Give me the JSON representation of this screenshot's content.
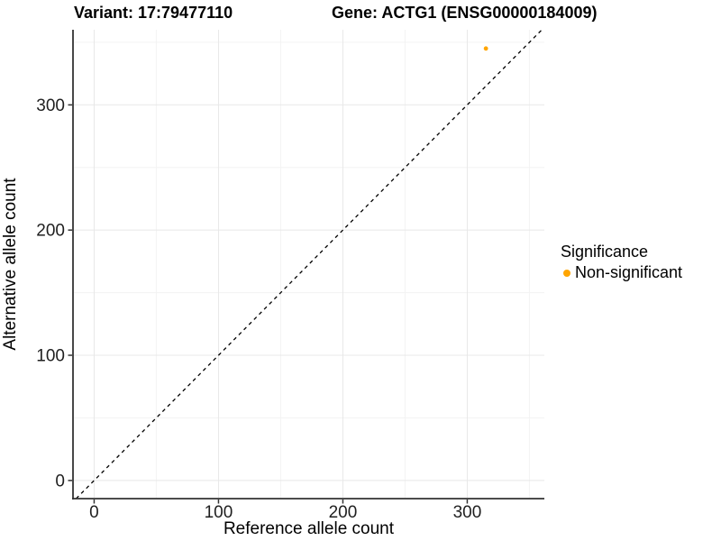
{
  "chart_data": {
    "type": "scatter",
    "title_left": "Variant: 17:79477110",
    "title_right": "Gene: ACTG1 (ENSG00000184009)",
    "xlabel": "Reference allele count",
    "ylabel": "Alternative allele count",
    "xlim": [
      -17,
      362
    ],
    "ylim": [
      -14.5,
      360
    ],
    "x_major_ticks": [
      0,
      100,
      200,
      300
    ],
    "y_major_ticks": [
      0,
      100,
      200,
      300
    ],
    "x_minor_gridlines": [
      50,
      150,
      250,
      350
    ],
    "y_minor_gridlines": [
      50,
      150,
      250,
      350
    ],
    "grid": "major+minor",
    "identity_line": {
      "slope": 1,
      "intercept": 0,
      "style": "dashed",
      "color": "#000000"
    },
    "series": [
      {
        "name": "Non-significant",
        "color": "#FFA500",
        "points": [
          {
            "x": 315,
            "y": 345
          }
        ]
      }
    ],
    "legend": {
      "title": "Significance",
      "position": "right",
      "items": [
        {
          "label": "Non-significant",
          "color": "#FFA500"
        }
      ]
    },
    "colors": {
      "background": "#ffffff",
      "axis_line": "#333333",
      "tick_mark": "#333333",
      "tick_label": "#1f1f1f",
      "grid_major": "#e8e8e8",
      "grid_minor": "#f3f3f3",
      "point": "#FFA500",
      "dashed_line": "#000000"
    }
  }
}
